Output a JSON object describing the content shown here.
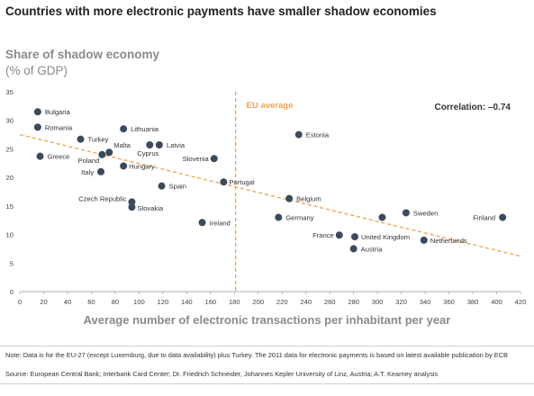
{
  "title": "Countries with more electronic payments have smaller shadow economies",
  "y_title": "Share of shadow economy",
  "y_unit": "(% of GDP)",
  "x_title": "Average number of electronic transactions per inhabitant per year",
  "note": "Note: Data is for the EU-27 (except Luxemburg, due to data availability) plus Turkey. The 2011 data for electronic payments is based on latest available publication by ECB",
  "source": "Source: European Central Bank; Interbank Card Center; Dr. Friedrich Schneider, Johannes Kepler University of Linz, Austria; A.T. Kearney analysis",
  "colors": {
    "point": "#3b4a5c",
    "trend": "#f0a04b",
    "eu_average": "#f0a04b"
  },
  "chart_data": {
    "type": "scatter",
    "xlim": [
      0,
      420
    ],
    "ylim": [
      0,
      35
    ],
    "x_ticks": [
      0,
      20,
      40,
      60,
      80,
      100,
      120,
      140,
      160,
      180,
      200,
      220,
      240,
      260,
      280,
      300,
      320,
      340,
      360,
      380,
      400,
      420
    ],
    "y_ticks": [
      0,
      5,
      10,
      15,
      20,
      25,
      30,
      35
    ],
    "grid": false,
    "eu_average": {
      "x": 181,
      "label": "EU average"
    },
    "correlation_label": "Correlation: –0.74",
    "trend_line": {
      "x": [
        0,
        420
      ],
      "y": [
        27.5,
        6.2
      ]
    },
    "points": [
      {
        "label": "Bulgaria",
        "x": 15,
        "y": 31.5
      },
      {
        "label": "Romania",
        "x": 15,
        "y": 28.8
      },
      {
        "label": "Turkey",
        "x": 51,
        "y": 26.7
      },
      {
        "label": "Lithuania",
        "x": 87,
        "y": 28.5
      },
      {
        "label": "Greece",
        "x": 17,
        "y": 23.7
      },
      {
        "label": "Malta",
        "x": 75,
        "y": 24.4
      },
      {
        "label": "Poland",
        "x": 69,
        "y": 24.0
      },
      {
        "label": "Latvia",
        "x": 117,
        "y": 25.7
      },
      {
        "label": "Cyprus",
        "x": 109,
        "y": 25.7
      },
      {
        "label": "Slovenia",
        "x": 163,
        "y": 23.3
      },
      {
        "label": "Hungary",
        "x": 87,
        "y": 22.0
      },
      {
        "label": "Italy",
        "x": 68,
        "y": 21.0
      },
      {
        "label": "Spain",
        "x": 119,
        "y": 18.5
      },
      {
        "label": "Portugal",
        "x": 171,
        "y": 19.2
      },
      {
        "label": "Czech Republic",
        "x": 94,
        "y": 15.7
      },
      {
        "label": "Slovakia",
        "x": 94,
        "y": 14.8
      },
      {
        "label": "Ireland",
        "x": 153,
        "y": 12.1
      },
      {
        "label": "Estonia",
        "x": 234,
        "y": 27.5
      },
      {
        "label": "Belgium",
        "x": 226,
        "y": 16.3
      },
      {
        "label": "Germany",
        "x": 217,
        "y": 13.0
      },
      {
        "label": "France",
        "x": 268,
        "y": 9.9
      },
      {
        "label": "United Kingdom",
        "x": 281,
        "y": 9.6
      },
      {
        "label": "Austria",
        "x": 280,
        "y": 7.5
      },
      {
        "label": "Sweden",
        "x": 324,
        "y": 13.8
      },
      {
        "label": "",
        "x": 304,
        "y": 13.0
      },
      {
        "label": "Netherlands",
        "x": 339,
        "y": 9.0
      },
      {
        "label": "Finland",
        "x": 405,
        "y": 13.0
      }
    ]
  }
}
